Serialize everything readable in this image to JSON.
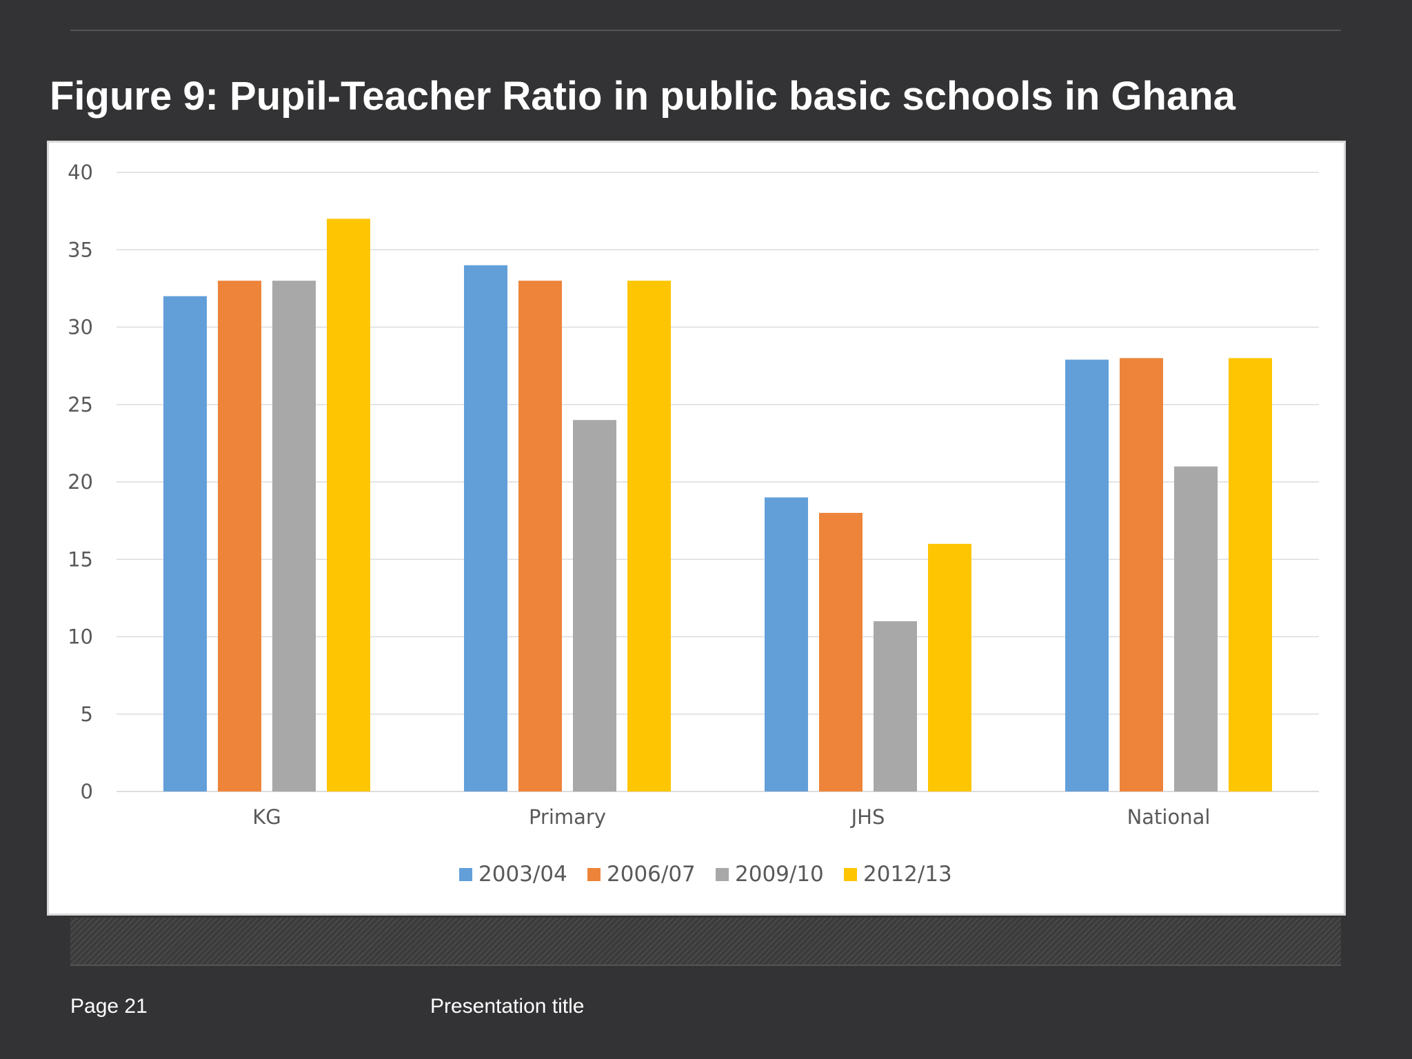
{
  "slide": {
    "title": "Figure 9: Pupil-Teacher Ratio in public basic schools in Ghana",
    "footer_page": "Page 21",
    "footer_title": "Presentation title"
  },
  "chart_data": {
    "type": "bar",
    "title": "",
    "xlabel": "",
    "ylabel": "",
    "categories": [
      "KG",
      "Primary",
      "JHS",
      "National"
    ],
    "series": [
      {
        "name": "2003/04",
        "color": "#629FD9",
        "values": [
          32,
          34,
          19,
          27.9
        ]
      },
      {
        "name": "2006/07",
        "color": "#ED843A",
        "values": [
          33,
          33,
          18,
          28
        ]
      },
      {
        "name": "2009/10",
        "color": "#A8A8A8",
        "values": [
          33,
          24,
          11,
          21
        ]
      },
      {
        "name": "2012/13",
        "color": "#FEC503",
        "values": [
          37,
          33,
          16,
          28
        ]
      }
    ],
    "yticks": [
      "0",
      "5",
      "10",
      "15",
      "20",
      "25",
      "30",
      "35",
      "40"
    ],
    "ylim": [
      0,
      40
    ],
    "grid": true,
    "legend_position": "bottom"
  }
}
